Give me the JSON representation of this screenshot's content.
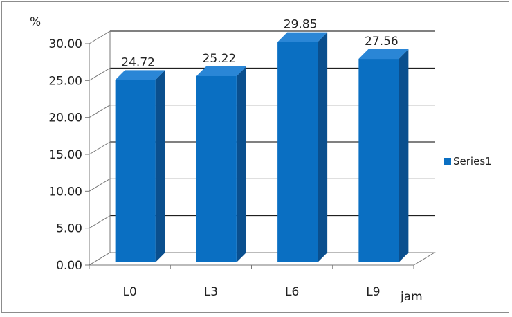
{
  "chart_data": {
    "type": "bar",
    "style": "3d-column",
    "categories": [
      "L0",
      "L3",
      "L6",
      "L9"
    ],
    "series": [
      {
        "name": "Series1",
        "values": [
          24.72,
          25.22,
          29.85,
          27.56
        ]
      }
    ],
    "data_labels": [
      "24.72",
      "25.22",
      "29.85",
      "27.56"
    ],
    "ylabel": "%",
    "xlabel": "jam",
    "ylim": [
      0,
      30
    ],
    "yticks": [
      "0.00",
      "5.00",
      "10.00",
      "15.00",
      "20.00",
      "25.00",
      "30.00"
    ],
    "grid": true,
    "legend": "right",
    "colors": {
      "bar_front": "#0a6fc2",
      "bar_side": "#0a4f8e",
      "bar_top": "#2a86d6",
      "grid": "#000000"
    }
  }
}
